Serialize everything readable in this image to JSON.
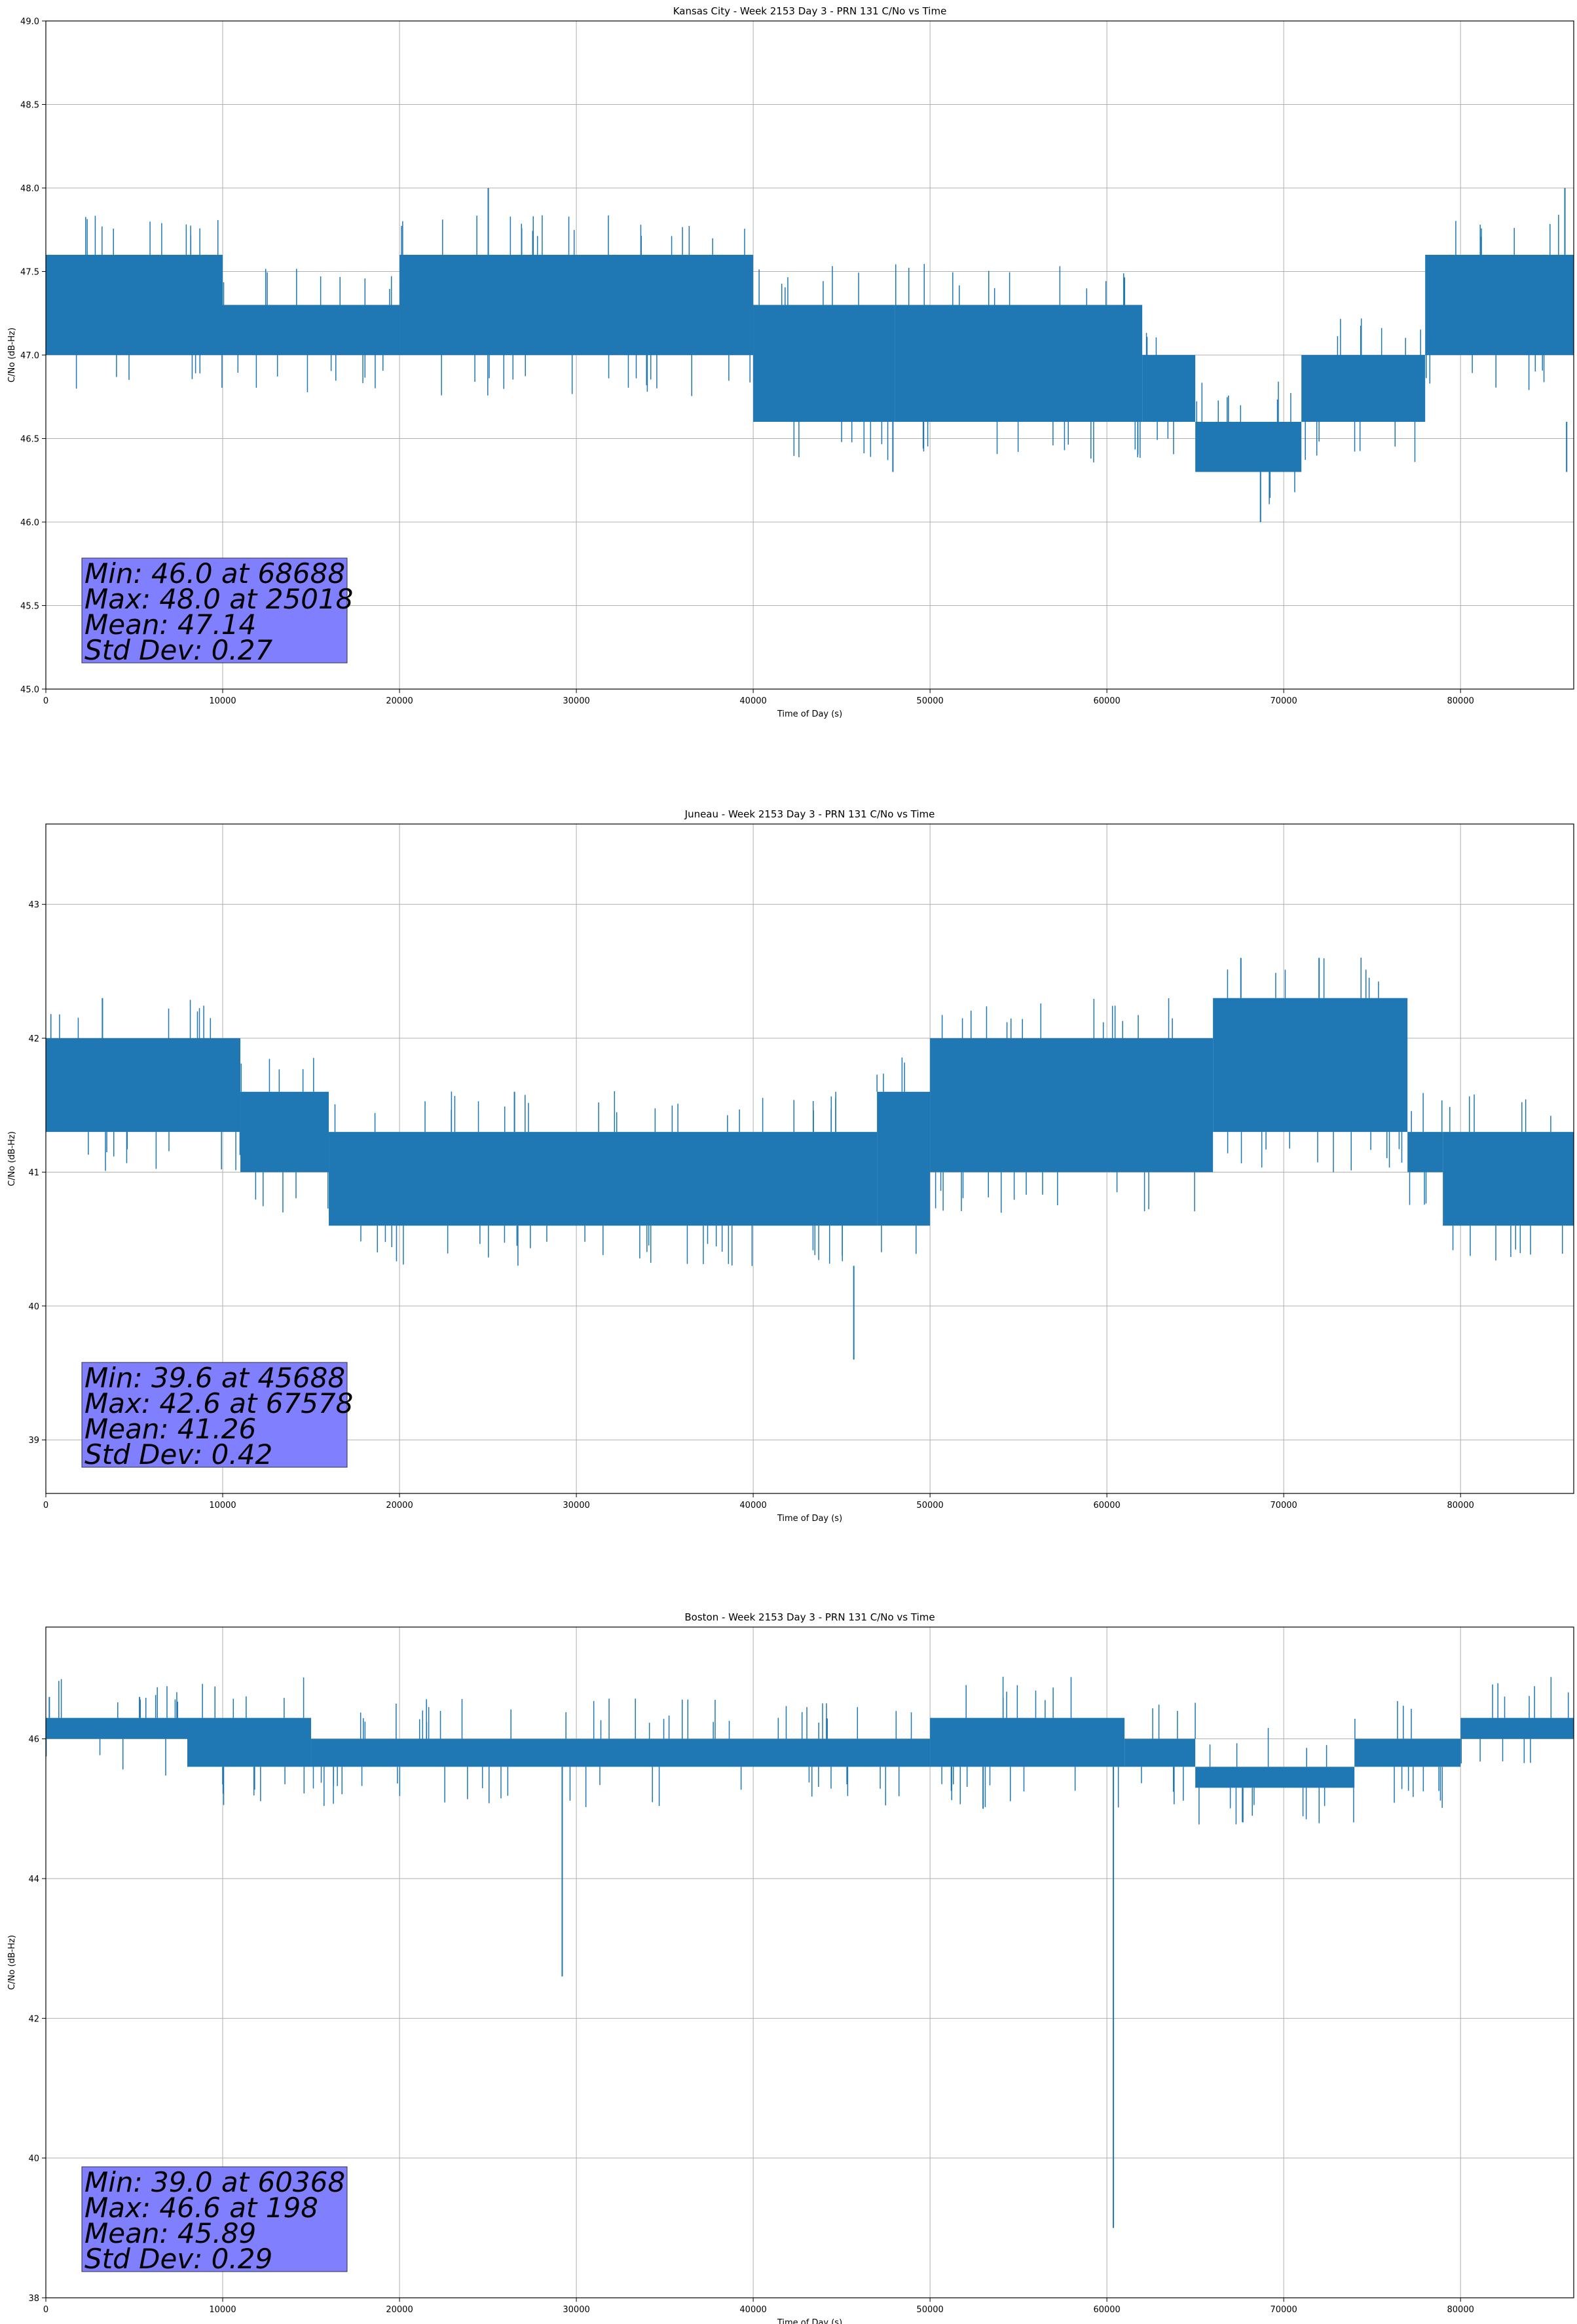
{
  "chart_data": [
    {
      "type": "line",
      "title": "Kansas City - Week 2153 Day 3 - PRN 131 C/No vs Time",
      "xlabel": "Time of Day (s)",
      "ylabel": "C/No (dB-Hz)",
      "xlim": [
        0,
        86400
      ],
      "ylim": [
        45.0,
        49.0
      ],
      "xticks": [
        0,
        10000,
        20000,
        30000,
        40000,
        50000,
        60000,
        70000,
        80000
      ],
      "yticks": [
        "45.0",
        "45.5",
        "46.0",
        "46.5",
        "47.0",
        "47.5",
        "48.0",
        "48.5",
        "49.0"
      ],
      "grid": true,
      "color": "#1f77b4",
      "bands": [
        {
          "x": [
            0,
            10000
          ],
          "y": [
            47.0,
            47.6
          ]
        },
        {
          "x": [
            10000,
            20000
          ],
          "y": [
            47.0,
            47.3
          ]
        },
        {
          "x": [
            20000,
            40000
          ],
          "y": [
            47.0,
            47.6
          ]
        },
        {
          "x": [
            40000,
            48000
          ],
          "y": [
            46.6,
            47.3
          ]
        },
        {
          "x": [
            48000,
            62000
          ],
          "y": [
            46.6,
            47.3
          ]
        },
        {
          "x": [
            62000,
            65000
          ],
          "y": [
            46.6,
            47.0
          ]
        },
        {
          "x": [
            65000,
            71000
          ],
          "y": [
            46.3,
            46.6
          ]
        },
        {
          "x": [
            71000,
            78000
          ],
          "y": [
            46.6,
            47.0
          ]
        },
        {
          "x": [
            78000,
            86400
          ],
          "y": [
            47.0,
            47.6
          ]
        }
      ],
      "spikes": [
        {
          "x": 25018,
          "y": [
            47.6,
            48.0
          ]
        },
        {
          "x": 68688,
          "y": [
            46.3,
            46.0
          ]
        },
        {
          "x": 85900,
          "y": [
            47.6,
            48.0
          ]
        },
        {
          "x": 47900,
          "y": [
            46.6,
            46.3
          ]
        },
        {
          "x": 86000,
          "y": [
            46.6,
            46.3
          ]
        }
      ],
      "stats": [
        "Min: 46.0 at 68688",
        "Max: 48.0 at 25018",
        "Mean: 47.14",
        "Std Dev: 0.27"
      ],
      "stats_box_color": "#8080ff"
    },
    {
      "type": "line",
      "title": "Juneau - Week 2153 Day 3 - PRN 131 C/No vs Time",
      "xlabel": "Time of Day (s)",
      "ylabel": "C/No (dB-Hz)",
      "xlim": [
        0,
        86400
      ],
      "ylim": [
        38.6,
        43.6
      ],
      "xticks": [
        0,
        10000,
        20000,
        30000,
        40000,
        50000,
        60000,
        70000,
        80000
      ],
      "yticks": [
        "39",
        "40",
        "41",
        "42",
        "43"
      ],
      "grid": true,
      "color": "#1f77b4",
      "bands": [
        {
          "x": [
            0,
            11000
          ],
          "y": [
            41.3,
            42.0
          ]
        },
        {
          "x": [
            11000,
            16000
          ],
          "y": [
            41.0,
            41.6
          ]
        },
        {
          "x": [
            16000,
            47000
          ],
          "y": [
            40.6,
            41.3
          ]
        },
        {
          "x": [
            47000,
            50000
          ],
          "y": [
            40.6,
            41.6
          ]
        },
        {
          "x": [
            50000,
            66000
          ],
          "y": [
            41.0,
            42.0
          ]
        },
        {
          "x": [
            66000,
            77000
          ],
          "y": [
            41.3,
            42.3
          ]
        },
        {
          "x": [
            77000,
            79000
          ],
          "y": [
            41.0,
            41.3
          ]
        },
        {
          "x": [
            79000,
            86400
          ],
          "y": [
            40.6,
            41.3
          ]
        }
      ],
      "spikes": [
        {
          "x": 45688,
          "y": [
            40.3,
            39.6
          ]
        },
        {
          "x": 67578,
          "y": [
            42.3,
            42.6
          ]
        },
        {
          "x": 72000,
          "y": [
            42.3,
            42.6
          ]
        },
        {
          "x": 3200,
          "y": [
            42.0,
            42.3
          ]
        },
        {
          "x": 26500,
          "y": [
            41.3,
            41.6
          ]
        }
      ],
      "stats": [
        "Min: 39.6 at 45688",
        "Max: 42.6 at 67578",
        "Mean: 41.26",
        "Std Dev: 0.42"
      ],
      "stats_box_color": "#8080ff"
    },
    {
      "type": "line",
      "title": "Boston - Week 2153 Day 3 - PRN 131 C/No vs Time",
      "xlabel": "Time of Day (s)",
      "ylabel": "C/No (dB-Hz)",
      "xlim": [
        0,
        86400
      ],
      "ylim": [
        38.0,
        47.6
      ],
      "xticks": [
        0,
        10000,
        20000,
        30000,
        40000,
        50000,
        60000,
        70000,
        80000
      ],
      "yticks": [
        "38",
        "40",
        "42",
        "44",
        "46"
      ],
      "grid": true,
      "color": "#1f77b4",
      "bands": [
        {
          "x": [
            0,
            8000
          ],
          "y": [
            46.0,
            46.3
          ]
        },
        {
          "x": [
            8000,
            15000
          ],
          "y": [
            45.6,
            46.3
          ]
        },
        {
          "x": [
            15000,
            50000
          ],
          "y": [
            45.6,
            46.0
          ]
        },
        {
          "x": [
            50000,
            61000
          ],
          "y": [
            45.6,
            46.3
          ]
        },
        {
          "x": [
            61000,
            65000
          ],
          "y": [
            45.6,
            46.0
          ]
        },
        {
          "x": [
            65000,
            74000
          ],
          "y": [
            45.3,
            45.6
          ]
        },
        {
          "x": [
            74000,
            80000
          ],
          "y": [
            45.6,
            46.0
          ]
        },
        {
          "x": [
            80000,
            86400
          ],
          "y": [
            46.0,
            46.3
          ]
        }
      ],
      "spikes": [
        {
          "x": 29200,
          "y": [
            45.6,
            42.6
          ]
        },
        {
          "x": 60368,
          "y": [
            45.6,
            39.0
          ]
        },
        {
          "x": 198,
          "y": [
            46.3,
            46.6
          ]
        },
        {
          "x": 5300,
          "y": [
            46.3,
            46.6
          ]
        },
        {
          "x": 53000,
          "y": [
            45.6,
            45.0
          ]
        }
      ],
      "stats": [
        "Min: 39.0 at 60368",
        "Max: 46.6 at 198",
        "Mean: 45.89",
        "Std Dev: 0.29"
      ],
      "stats_box_color": "#8080ff"
    }
  ]
}
